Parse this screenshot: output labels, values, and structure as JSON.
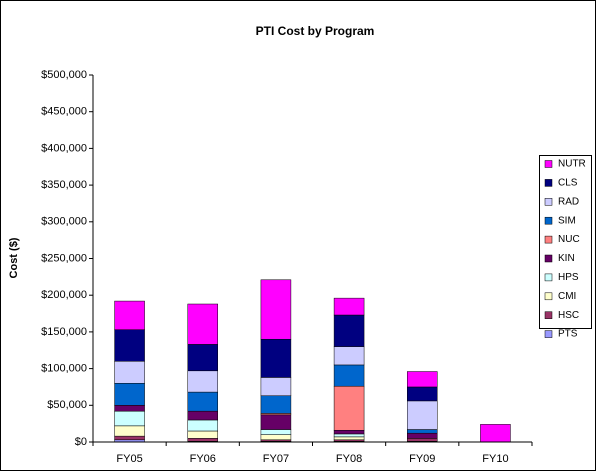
{
  "chart_data": {
    "type": "stacked_bar",
    "title": "PTI Cost by Program",
    "y_label": "Cost ($)",
    "categories": [
      "FY05",
      "FY06",
      "FY07",
      "FY08",
      "FY09",
      "FY10"
    ],
    "series": [
      {
        "name": "PTS",
        "color": "#9999ff",
        "values": [
          3000,
          1000,
          1000,
          1000,
          1000,
          0
        ]
      },
      {
        "name": "HSC",
        "color": "#993366",
        "values": [
          5000,
          4000,
          2000,
          2000,
          4000,
          0
        ]
      },
      {
        "name": "CMI",
        "color": "#ffffcc",
        "values": [
          14000,
          10000,
          7000,
          4000,
          0,
          0
        ]
      },
      {
        "name": "HPS",
        "color": "#ccffff",
        "values": [
          20000,
          15000,
          7000,
          4000,
          0,
          0
        ]
      },
      {
        "name": "KIN",
        "color": "#660066",
        "values": [
          8000,
          12000,
          20000,
          5000,
          7000,
          0
        ]
      },
      {
        "name": "NUC",
        "color": "#ff8080",
        "values": [
          0,
          0,
          2000,
          60000,
          0,
          0
        ]
      },
      {
        "name": "SIM",
        "color": "#0066cc",
        "values": [
          30000,
          26000,
          24000,
          29000,
          5000,
          0
        ]
      },
      {
        "name": "RAD",
        "color": "#ccccff",
        "values": [
          30000,
          29000,
          25000,
          25000,
          39000,
          0
        ]
      },
      {
        "name": "CLS",
        "color": "#000080",
        "values": [
          43000,
          36000,
          52000,
          43000,
          19000,
          0
        ]
      },
      {
        "name": "NUTR",
        "color": "#ff00ff",
        "values": [
          39000,
          55000,
          81000,
          23000,
          21000,
          24000
        ]
      }
    ],
    "ylim": [
      0,
      500000
    ],
    "yticks": [
      {
        "value": 0,
        "label": "$0"
      },
      {
        "value": 50000,
        "label": "$50,000"
      },
      {
        "value": 100000,
        "label": "$100,000"
      },
      {
        "value": 150000,
        "label": "$150,000"
      },
      {
        "value": 200000,
        "label": "$200,000"
      },
      {
        "value": 250000,
        "label": "$250,000"
      },
      {
        "value": 300000,
        "label": "$300,000"
      },
      {
        "value": 350000,
        "label": "$350,000"
      },
      {
        "value": 400000,
        "label": "$400,000"
      },
      {
        "value": 450000,
        "label": "$450,000"
      },
      {
        "value": 500000,
        "label": "$500,000"
      }
    ],
    "legend": "right"
  }
}
